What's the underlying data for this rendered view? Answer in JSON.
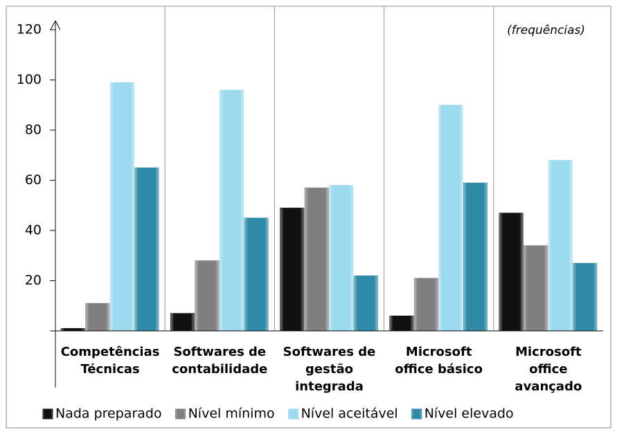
{
  "chart_data": {
    "type": "bar",
    "annotation": "(frequências)",
    "categories": [
      "Competências Técnicas",
      "Softwares de contabilidade",
      "Softwares de gestão integrada",
      "Microsoft office básico",
      "Microsoft office avançado"
    ],
    "series": [
      {
        "name": "Nada preparado",
        "color": "#111111",
        "values": [
          1,
          7,
          49,
          6,
          47
        ]
      },
      {
        "name": "Nível mínimo",
        "color": "#7f7f7f",
        "values": [
          11,
          28,
          57,
          21,
          34
        ]
      },
      {
        "name": "Nível aceitável",
        "color": "#9ad9ee",
        "values": [
          99,
          96,
          58,
          90,
          68
        ]
      },
      {
        "name": "Nível elevado",
        "color": "#2e8aa6",
        "values": [
          65,
          45,
          22,
          59,
          27
        ]
      }
    ],
    "ylim": [
      0,
      120
    ],
    "yticks": [
      20,
      40,
      60,
      80,
      100,
      120
    ],
    "legend": "bottom"
  }
}
